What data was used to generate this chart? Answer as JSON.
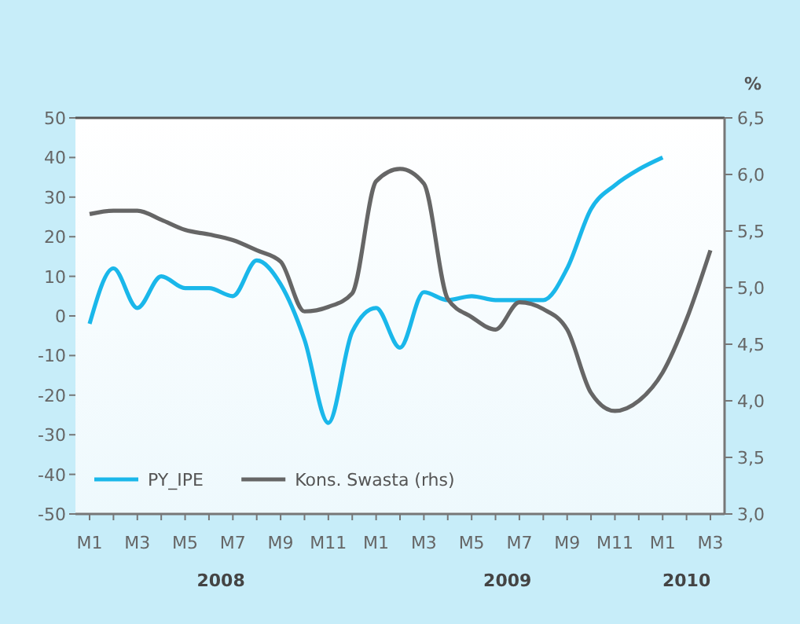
{
  "chart_data": {
    "type": "line",
    "categories": [
      "M1",
      null,
      "M3",
      null,
      "M5",
      null,
      "M7",
      null,
      "M9",
      null,
      "M11",
      null,
      "M1",
      null,
      "M3",
      null,
      "M5",
      null,
      "M7",
      null,
      "M9",
      null,
      "M11",
      null,
      "M1",
      null,
      "M3"
    ],
    "series": [
      {
        "name": "PY_IPE",
        "color": "#1ab7ea",
        "values": [
          -2,
          12,
          2,
          10,
          7,
          7,
          5,
          14,
          8,
          -6,
          -27,
          -4,
          2,
          -8,
          6,
          4,
          5,
          4,
          4,
          4,
          12,
          27,
          33,
          37,
          40,
          null,
          null
        ]
      },
      {
        "name": "Kons. Swasta (rhs)",
        "color": "#666666",
        "axis": "y2",
        "values": [
          5.65,
          5.68,
          5.68,
          5.6,
          5.51,
          5.47,
          5.42,
          5.33,
          5.23,
          4.79,
          4.83,
          4.95,
          5.94,
          6.05,
          5.92,
          4.9,
          4.74,
          4.63,
          4.87,
          4.81,
          4.63,
          4.07,
          3.91,
          4.0,
          4.25,
          4.72,
          5.33
        ]
      }
    ],
    "ylim": [
      -50,
      50
    ],
    "yticks": [
      -50,
      -40,
      -30,
      -20,
      -10,
      0,
      10,
      20,
      30,
      40,
      50
    ],
    "y2lim": [
      3,
      6.5
    ],
    "y2ticks": [
      {
        "value": 3,
        "label": "3,0"
      },
      {
        "value": 3.5,
        "label": "3,5"
      },
      {
        "value": 4,
        "label": "4,0"
      },
      {
        "value": 4.5,
        "label": "4,5"
      },
      {
        "value": 5,
        "label": "5,0"
      },
      {
        "value": 5.5,
        "label": "5,5"
      },
      {
        "value": 6,
        "label": "6,0"
      },
      {
        "value": 6.5,
        "label": "6,5"
      }
    ],
    "y2label": "%",
    "annotations": [
      "2008",
      "2009",
      "2010"
    ],
    "legend": "bottom left",
    "grid": false,
    "marker": "none",
    "line_style": "solid"
  }
}
